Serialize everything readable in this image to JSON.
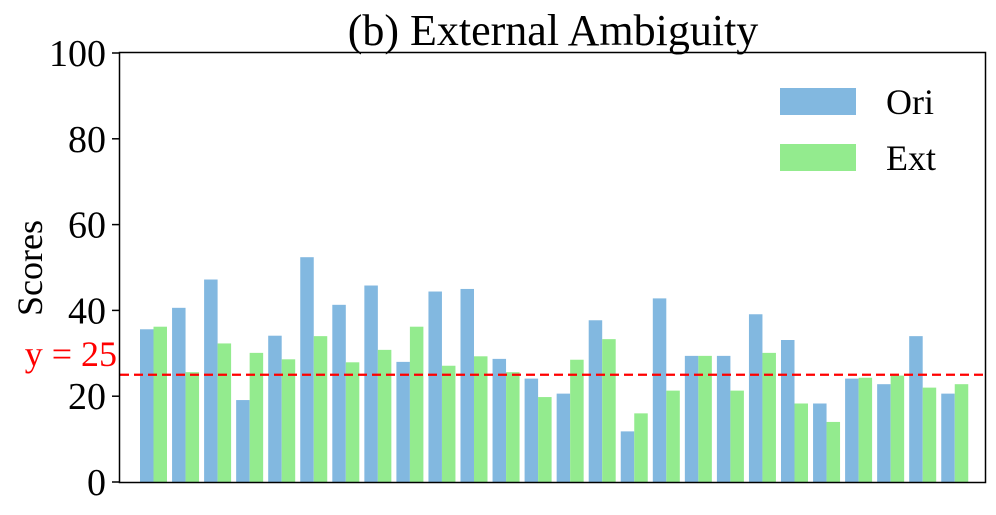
{
  "chart_data": {
    "type": "bar",
    "title": "(b) External Ambiguity",
    "xlabel": "",
    "ylabel": "Scores",
    "ylim": [
      0,
      100
    ],
    "yticks": [
      "0",
      "20",
      "40",
      "60",
      "80",
      "100"
    ],
    "grid": false,
    "legend_position": "top-right",
    "reference_line": {
      "y": 25,
      "label": "y = 25",
      "color": "#ff0000",
      "style": "dashed"
    },
    "series": [
      {
        "name": "Ori",
        "color": "#82b8e0",
        "values": [
          35.6,
          40.6,
          47.2,
          19.1,
          34.1,
          52.4,
          41.3,
          45.8,
          28.0,
          44.4,
          45.0,
          28.7,
          24.1,
          20.6,
          37.7,
          11.8,
          42.8,
          29.4,
          29.4,
          39.1,
          33.1,
          18.3,
          24.1,
          22.8,
          34.0,
          20.6
        ]
      },
      {
        "name": "Ext",
        "color": "#93eb8e",
        "values": [
          36.2,
          25.6,
          32.3,
          30.1,
          28.6,
          34.0,
          27.9,
          30.8,
          36.2,
          27.1,
          29.3,
          25.6,
          19.8,
          28.5,
          33.3,
          16.0,
          21.3,
          29.4,
          21.3,
          30.1,
          18.3,
          14.0,
          24.3,
          24.8,
          22.0,
          22.8
        ]
      }
    ]
  }
}
